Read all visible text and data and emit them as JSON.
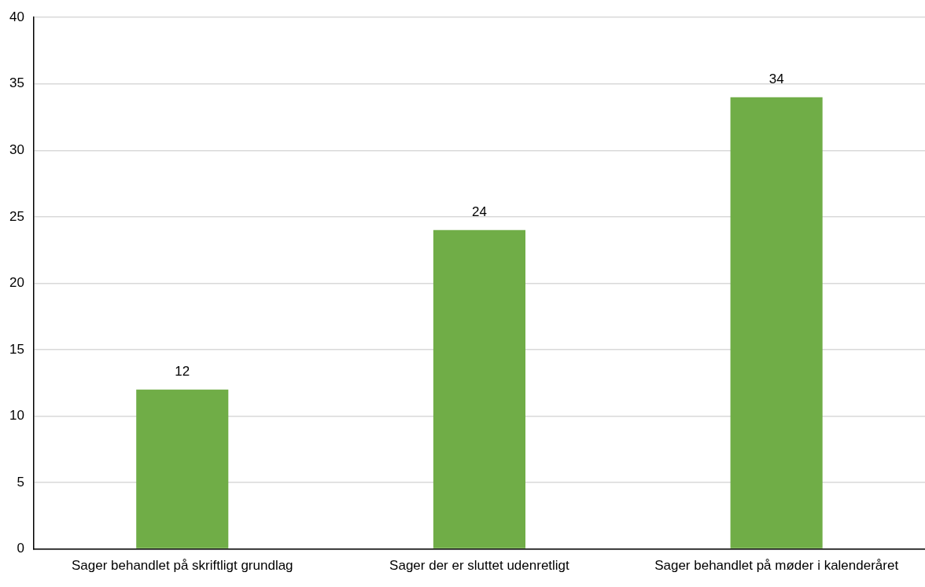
{
  "chart_data": {
    "type": "bar",
    "categories": [
      "Sager behandlet på skriftligt grundlag",
      "Sager der er sluttet udenretligt",
      "Sager behandlet på møder i kalenderåret"
    ],
    "values": [
      12,
      24,
      34
    ],
    "color": "#70ad47",
    "ylim": [
      0,
      40
    ],
    "yticks": [
      0,
      5,
      10,
      15,
      20,
      25,
      30,
      35,
      40
    ],
    "grid": "y",
    "data_labels": true,
    "legend": false
  }
}
